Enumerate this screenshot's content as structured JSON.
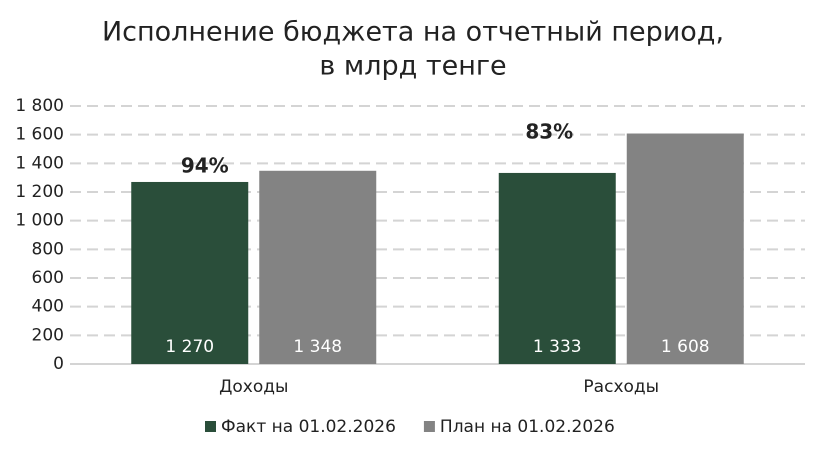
{
  "chart_data": {
    "type": "bar",
    "title": [
      "Исполнение бюджета на отчетный период,",
      "в млрд тенге"
    ],
    "categories": [
      "Доходы",
      "Расходы"
    ],
    "series": [
      {
        "name": "Факт на 01.02.2026",
        "color": "#2a4e3a",
        "values": [
          1270,
          1333
        ],
        "value_labels": [
          "1 270",
          "1 333"
        ]
      },
      {
        "name": "План на 01.02.2026",
        "color": "#838383",
        "values": [
          1348,
          1608
        ],
        "value_labels": [
          "1 348",
          "1 608"
        ]
      }
    ],
    "annotations": [
      "94%",
      "83%"
    ],
    "ylim": [
      0,
      1800
    ],
    "yticks": [
      0,
      200,
      400,
      600,
      800,
      {
        "value": 1000,
        "label": "1 000"
      },
      {
        "value": 1200,
        "label": "1 200"
      },
      {
        "value": 1400,
        "label": "1 400"
      },
      {
        "value": 1600,
        "label": "1 600"
      },
      {
        "value": 1800,
        "label": "1 800"
      }
    ],
    "grid": true,
    "legend": "bottom"
  }
}
